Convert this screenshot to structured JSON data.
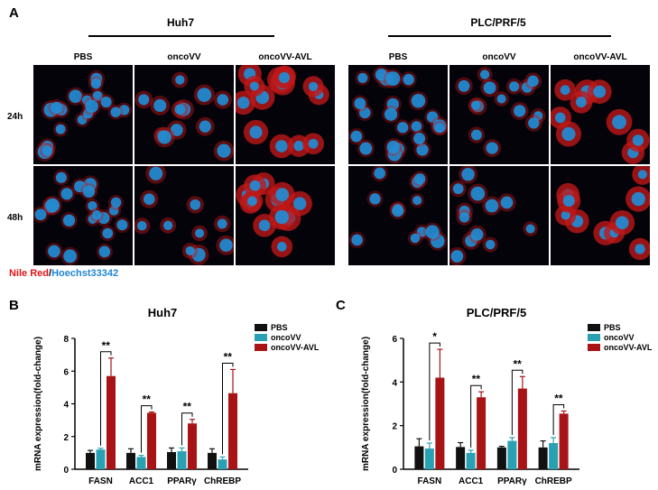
{
  "panel_labels": {
    "a": "A",
    "b": "B",
    "c": "C"
  },
  "panel_a": {
    "groups": [
      {
        "title": "Huh7",
        "columns": [
          "PBS",
          "oncoVV",
          "oncoVV-AVL"
        ]
      },
      {
        "title": "PLC/PRF/5",
        "columns": [
          "PBS",
          "oncoVV",
          "oncoVV-AVL"
        ]
      }
    ],
    "rows": [
      "24h",
      "48h"
    ],
    "stain_legend": {
      "red": "Nile Red",
      "sep": "/",
      "blue": "Hoechst33342"
    }
  },
  "chart_data": [
    {
      "type": "bar",
      "title": "Huh7",
      "ylabel": "mRNA expression(fold-change)",
      "categories": [
        "FASN",
        "ACC1",
        "PPARγ",
        "ChREBP"
      ],
      "ylim": [
        0,
        8
      ],
      "yticks": [
        0,
        2,
        4,
        6,
        8
      ],
      "series": [
        {
          "name": "PBS",
          "color": "#111111",
          "values": [
            1.0,
            1.0,
            1.05,
            1.0
          ],
          "errors": [
            0.15,
            0.25,
            0.25,
            0.25
          ]
        },
        {
          "name": "oncoVV",
          "color": "#2aa1b3",
          "values": [
            1.2,
            0.75,
            1.1,
            0.6
          ],
          "errors": [
            0.08,
            0.1,
            0.2,
            0.15
          ]
        },
        {
          "name": "oncoVV-AVL",
          "color": "#a81416",
          "values": [
            5.7,
            3.45,
            2.8,
            4.65
          ],
          "errors": [
            1.1,
            0.05,
            0.25,
            1.45
          ]
        }
      ],
      "significance": [
        "**",
        "**",
        "**",
        "**"
      ],
      "legend_position": "top-right"
    },
    {
      "type": "bar",
      "title": "PLC/PRF/5",
      "ylabel": "mRNA expression(fold-change)",
      "categories": [
        "FASN",
        "ACC1",
        "PPARγ",
        "ChREBP"
      ],
      "ylim": [
        0,
        6
      ],
      "yticks": [
        0,
        2,
        4,
        6
      ],
      "series": [
        {
          "name": "PBS",
          "color": "#111111",
          "values": [
            1.05,
            1.02,
            1.0,
            1.0
          ],
          "errors": [
            0.35,
            0.2,
            0.05,
            0.3
          ]
        },
        {
          "name": "oncoVV",
          "color": "#2aa1b3",
          "values": [
            0.95,
            0.75,
            1.3,
            1.2
          ],
          "errors": [
            0.25,
            0.12,
            0.15,
            0.25
          ]
        },
        {
          "name": "oncoVV-AVL",
          "color": "#a81416",
          "values": [
            4.2,
            3.3,
            3.7,
            2.55
          ],
          "errors": [
            1.3,
            0.25,
            0.55,
            0.12
          ]
        }
      ],
      "significance": [
        "*",
        "**",
        "**",
        "**"
      ],
      "legend_position": "top-right"
    }
  ]
}
